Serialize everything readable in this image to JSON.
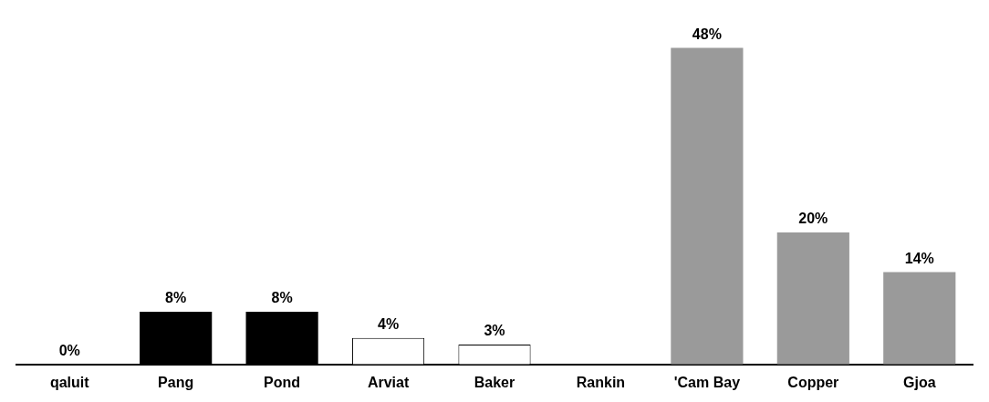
{
  "chart_data": {
    "type": "bar",
    "categories": [
      "qaluit",
      "Pang",
      "Pond",
      "Arviat",
      "Baker",
      "Rankin",
      "'Cam Bay",
      "Copper",
      "Gjoa"
    ],
    "values": [
      0,
      8,
      8,
      4,
      3,
      null,
      48,
      20,
      14
    ],
    "colors": [
      "#000000",
      "#000000",
      "#000000",
      "#ffffff",
      "#ffffff",
      "#ffffff",
      "#9a9a9a",
      "#9a9a9a",
      "#9a9a9a"
    ],
    "value_labels": [
      "0%",
      "8%",
      "8%",
      "4%",
      "3%",
      null,
      "48%",
      "20%",
      "14%"
    ],
    "tick_labels": "x",
    "grid": false,
    "legend": false
  }
}
